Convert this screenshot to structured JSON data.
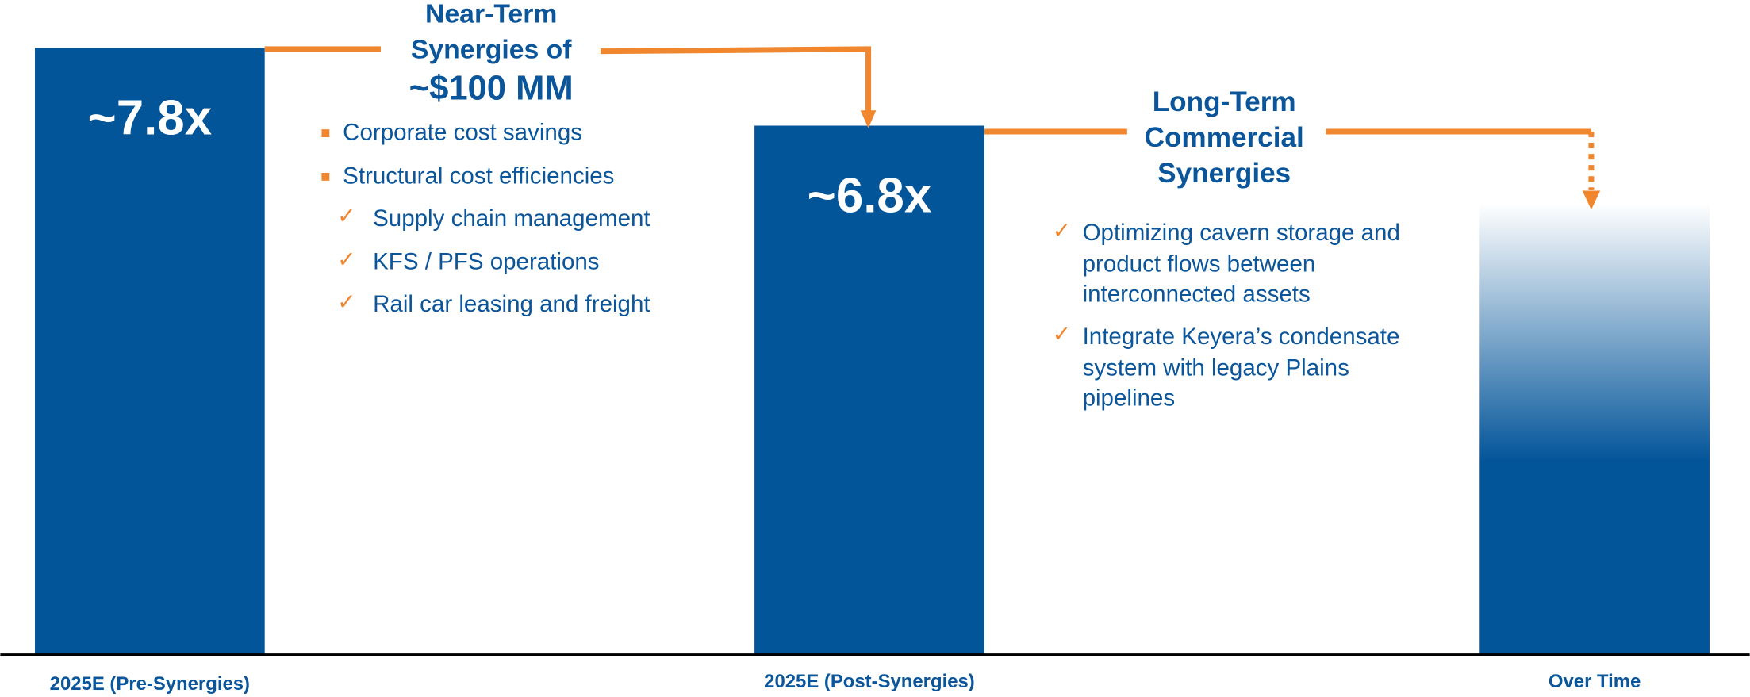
{
  "chart_data": {
    "type": "bar",
    "categories": [
      "2025E (Pre-Synergies)",
      "2025E (Post-Synergies)",
      "Over Time"
    ],
    "values": [
      7.8,
      6.8,
      5.8
    ],
    "value_labels": [
      "~7.8x",
      "~6.8x",
      null
    ],
    "color": "#03559a",
    "ylim": [
      0,
      8
    ],
    "annotations": [
      {
        "title": [
          "Near-Term",
          "Synergies of",
          "~$100 MM"
        ],
        "bullets": [
          "Corporate cost savings",
          "Structural cost efficiencies"
        ],
        "sub_bullets": [
          "Supply chain management",
          "KFS / PFS operations",
          "Rail car leasing and freight"
        ]
      },
      {
        "title": [
          "Long-Term",
          "Commercial",
          "Synergies"
        ],
        "bullets": [
          [
            "Optimizing cavern storage and",
            "product flows between",
            "interconnected assets"
          ],
          [
            "Integrate Keyera’s condensate",
            "system with legacy Plains",
            "pipelines"
          ]
        ]
      }
    ]
  }
}
